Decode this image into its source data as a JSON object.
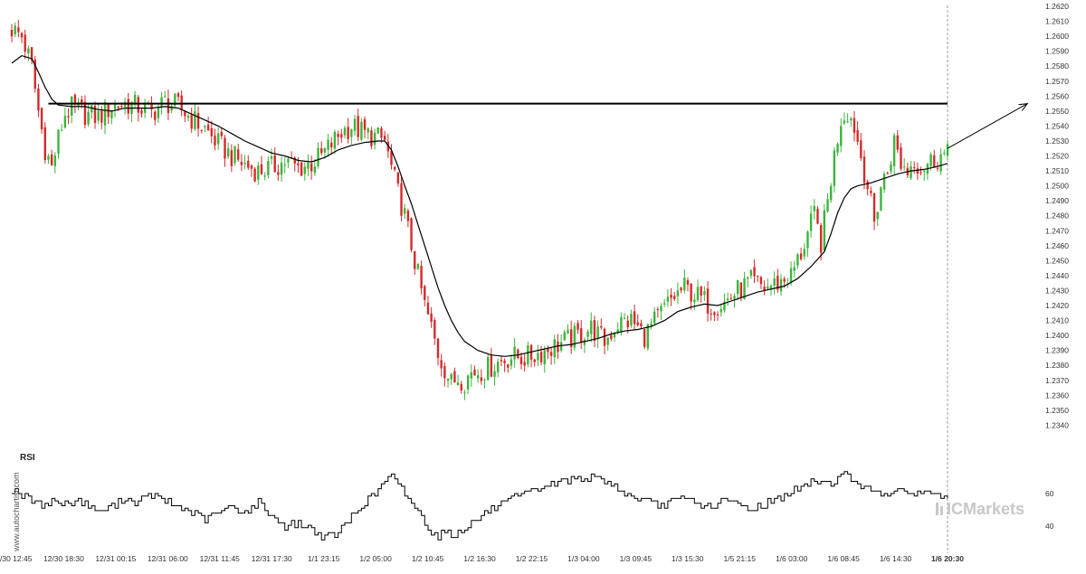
{
  "chart_data": [
    {
      "type": "candlestick",
      "title": "",
      "xlabel": "",
      "ylabel": "",
      "ylim": [
        1.233,
        1.262
      ],
      "y_ticks": [
        "1.2340",
        "1.2350",
        "1.2360",
        "1.2370",
        "1.2380",
        "1.2390",
        "1.2400",
        "1.2410",
        "1.2420",
        "1.2430",
        "1.2440",
        "1.2450",
        "1.2460",
        "1.2470",
        "1.2480",
        "1.2490",
        "1.2500",
        "1.2510",
        "1.2520",
        "1.2530",
        "1.2540",
        "1.2550",
        "1.2560",
        "1.2570",
        "1.2580",
        "1.2590",
        "1.2600",
        "1.2610",
        "1.2620"
      ],
      "x_ticks": [
        "12/30 12:45",
        "12/30 18:30",
        "12/31 00:15",
        "12/31 06:00",
        "12/31 11:45",
        "12/31 17:30",
        "1/1 23:15",
        "1/2 05:00",
        "1/2 10:45",
        "1/2 16:30",
        "1/2 22:15",
        "1/3 04:00",
        "1/3 09:45",
        "1/3 15:30",
        "1/5 21:15",
        "1/6 03:00",
        "1/6 08:45",
        "1/6 14:30",
        "1/6 20:30"
      ],
      "current_time_label": "1/6 20:30",
      "bullish_color": "#3cb43c",
      "bearish_color": "#d42a2a",
      "close_path": [
        [
          0,
          1.2605
        ],
        [
          3,
          1.26
        ],
        [
          6,
          1.258
        ],
        [
          8,
          1.255
        ],
        [
          10,
          1.2525
        ],
        [
          12,
          1.2512
        ],
        [
          14,
          1.2532
        ],
        [
          16,
          1.2548
        ],
        [
          18,
          1.2552
        ],
        [
          22,
          1.2548
        ],
        [
          26,
          1.2546
        ],
        [
          30,
          1.2553
        ],
        [
          34,
          1.2555
        ],
        [
          38,
          1.2553
        ],
        [
          42,
          1.2549
        ],
        [
          46,
          1.2556
        ],
        [
          50,
          1.2553
        ],
        [
          54,
          1.2545
        ],
        [
          58,
          1.2538
        ],
        [
          62,
          1.2528
        ],
        [
          66,
          1.252
        ],
        [
          70,
          1.2514
        ],
        [
          74,
          1.251
        ],
        [
          78,
          1.2512
        ],
        [
          82,
          1.2516
        ],
        [
          86,
          1.2512
        ],
        [
          90,
          1.2515
        ],
        [
          93,
          1.252
        ],
        [
          96,
          1.2528
        ],
        [
          99,
          1.2536
        ],
        [
          102,
          1.254
        ],
        [
          106,
          1.2535
        ],
        [
          110,
          1.2532
        ],
        [
          112,
          1.253
        ],
        [
          114,
          1.2512
        ],
        [
          116,
          1.2495
        ],
        [
          118,
          1.248
        ],
        [
          120,
          1.246
        ],
        [
          122,
          1.244
        ],
        [
          124,
          1.242
        ],
        [
          126,
          1.2405
        ],
        [
          128,
          1.2388
        ],
        [
          130,
          1.2378
        ],
        [
          132,
          1.2368
        ],
        [
          134,
          1.2372
        ],
        [
          136,
          1.237
        ],
        [
          138,
          1.2375
        ],
        [
          142,
          1.2377
        ],
        [
          146,
          1.2382
        ],
        [
          150,
          1.2386
        ],
        [
          154,
          1.2385
        ],
        [
          158,
          1.2388
        ],
        [
          162,
          1.2392
        ],
        [
          166,
          1.2396
        ],
        [
          170,
          1.24
        ],
        [
          174,
          1.2405
        ],
        [
          178,
          1.2396
        ],
        [
          182,
          1.2408
        ],
        [
          186,
          1.241
        ],
        [
          190,
          1.24
        ],
        [
          194,
          1.2412
        ],
        [
          198,
          1.2424
        ],
        [
          202,
          1.2432
        ],
        [
          206,
          1.2426
        ],
        [
          210,
          1.242
        ],
        [
          214,
          1.2422
        ],
        [
          218,
          1.243
        ],
        [
          222,
          1.2436
        ],
        [
          226,
          1.2432
        ],
        [
          230,
          1.2435
        ],
        [
          234,
          1.244
        ],
        [
          237,
          1.2455
        ],
        [
          239,
          1.2468
        ],
        [
          241,
          1.248
        ],
        [
          243,
          1.2462
        ],
        [
          245,
          1.249
        ],
        [
          247,
          1.252
        ],
        [
          249,
          1.2545
        ],
        [
          251,
          1.255
        ],
        [
          253,
          1.254
        ],
        [
          255,
          1.252
        ],
        [
          257,
          1.25
        ],
        [
          259,
          1.2475
        ],
        [
          261,
          1.25
        ],
        [
          263,
          1.251
        ],
        [
          265,
          1.253
        ],
        [
          267,
          1.2515
        ],
        [
          269,
          1.251
        ],
        [
          271,
          1.2518
        ],
        [
          273,
          1.2512
        ],
        [
          275,
          1.2515
        ],
        [
          277,
          1.2518
        ],
        [
          279,
          1.252
        ],
        [
          281,
          1.252
        ]
      ],
      "moving_average": [
        [
          0,
          1.2582
        ],
        [
          3,
          1.2587
        ],
        [
          6,
          1.2585
        ],
        [
          8,
          1.2576
        ],
        [
          10,
          1.2566
        ],
        [
          12,
          1.2558
        ],
        [
          14,
          1.2554
        ],
        [
          18,
          1.2553
        ],
        [
          22,
          1.2553
        ],
        [
          26,
          1.2551
        ],
        [
          30,
          1.255
        ],
        [
          34,
          1.2552
        ],
        [
          38,
          1.2552
        ],
        [
          42,
          1.2552
        ],
        [
          46,
          1.2553
        ],
        [
          50,
          1.2552
        ],
        [
          54,
          1.2548
        ],
        [
          58,
          1.2544
        ],
        [
          62,
          1.254
        ],
        [
          66,
          1.2535
        ],
        [
          70,
          1.253
        ],
        [
          74,
          1.2526
        ],
        [
          78,
          1.2522
        ],
        [
          82,
          1.252
        ],
        [
          86,
          1.2517
        ],
        [
          90,
          1.2516
        ],
        [
          94,
          1.2519
        ],
        [
          98,
          1.2524
        ],
        [
          102,
          1.2527
        ],
        [
          106,
          1.2529
        ],
        [
          110,
          1.253
        ],
        [
          112,
          1.253
        ],
        [
          114,
          1.2524
        ],
        [
          116,
          1.2513
        ],
        [
          118,
          1.25
        ],
        [
          120,
          1.2488
        ],
        [
          122,
          1.2474
        ],
        [
          124,
          1.246
        ],
        [
          126,
          1.2446
        ],
        [
          128,
          1.2432
        ],
        [
          130,
          1.242
        ],
        [
          132,
          1.241
        ],
        [
          134,
          1.2402
        ],
        [
          136,
          1.2396
        ],
        [
          140,
          1.239
        ],
        [
          144,
          1.2387
        ],
        [
          148,
          1.2386
        ],
        [
          152,
          1.2387
        ],
        [
          156,
          1.2389
        ],
        [
          160,
          1.2391
        ],
        [
          164,
          1.2393
        ],
        [
          168,
          1.2394
        ],
        [
          172,
          1.2396
        ],
        [
          176,
          1.2398
        ],
        [
          180,
          1.2401
        ],
        [
          184,
          1.2403
        ],
        [
          188,
          1.2404
        ],
        [
          192,
          1.2406
        ],
        [
          196,
          1.241
        ],
        [
          200,
          1.2416
        ],
        [
          204,
          1.2419
        ],
        [
          208,
          1.2421
        ],
        [
          212,
          1.242
        ],
        [
          216,
          1.2423
        ],
        [
          220,
          1.2426
        ],
        [
          224,
          1.2429
        ],
        [
          228,
          1.2431
        ],
        [
          232,
          1.2433
        ],
        [
          236,
          1.2438
        ],
        [
          240,
          1.2446
        ],
        [
          244,
          1.2456
        ],
        [
          246,
          1.2468
        ],
        [
          248,
          1.2482
        ],
        [
          250,
          1.2492
        ],
        [
          252,
          1.2498
        ],
        [
          254,
          1.25
        ],
        [
          258,
          1.2502
        ],
        [
          262,
          1.2505
        ],
        [
          266,
          1.2508
        ],
        [
          270,
          1.251
        ],
        [
          274,
          1.2511
        ],
        [
          278,
          1.2513
        ],
        [
          281,
          1.2515
        ]
      ],
      "resistance_level": 1.2555,
      "resistance_span": [
        11,
        281
      ],
      "projection_arrow": {
        "from": [
          281,
          1.2525
        ],
        "to": [
          305,
          1.2555
        ]
      },
      "candle_count": 282
    },
    {
      "type": "line",
      "title": "RSI",
      "ylim": [
        30,
        80
      ],
      "y_ticks": [
        "40",
        "60"
      ],
      "values_path": [
        [
          0,
          63
        ],
        [
          4,
          58
        ],
        [
          8,
          53
        ],
        [
          12,
          56
        ],
        [
          16,
          53
        ],
        [
          20,
          56
        ],
        [
          24,
          52
        ],
        [
          26,
          48
        ],
        [
          30,
          52
        ],
        [
          34,
          57
        ],
        [
          38,
          55
        ],
        [
          42,
          59
        ],
        [
          46,
          55
        ],
        [
          50,
          52
        ],
        [
          54,
          48
        ],
        [
          58,
          44
        ],
        [
          62,
          48
        ],
        [
          66,
          52
        ],
        [
          70,
          48
        ],
        [
          74,
          55
        ],
        [
          78,
          46
        ],
        [
          82,
          40
        ],
        [
          86,
          42
        ],
        [
          90,
          38
        ],
        [
          94,
          33
        ],
        [
          98,
          36
        ],
        [
          102,
          46
        ],
        [
          106,
          55
        ],
        [
          110,
          62
        ],
        [
          112,
          68
        ],
        [
          114,
          70
        ],
        [
          116,
          65
        ],
        [
          118,
          60
        ],
        [
          120,
          55
        ],
        [
          122,
          48
        ],
        [
          124,
          42
        ],
        [
          126,
          37
        ],
        [
          128,
          34
        ],
        [
          130,
          38
        ],
        [
          132,
          33
        ],
        [
          134,
          36
        ],
        [
          138,
          42
        ],
        [
          142,
          48
        ],
        [
          146,
          52
        ],
        [
          150,
          56
        ],
        [
          154,
          60
        ],
        [
          158,
          63
        ],
        [
          162,
          66
        ],
        [
          166,
          68
        ],
        [
          170,
          70
        ],
        [
          174,
          69
        ],
        [
          178,
          68
        ],
        [
          182,
          63
        ],
        [
          186,
          58
        ],
        [
          190,
          55
        ],
        [
          194,
          52
        ],
        [
          198,
          55
        ],
        [
          202,
          57
        ],
        [
          206,
          54
        ],
        [
          210,
          52
        ],
        [
          214,
          56
        ],
        [
          218,
          53
        ],
        [
          222,
          50
        ],
        [
          226,
          54
        ],
        [
          230,
          57
        ],
        [
          234,
          61
        ],
        [
          238,
          65
        ],
        [
          242,
          68
        ],
        [
          246,
          66
        ],
        [
          248,
          70
        ],
        [
          250,
          72
        ],
        [
          252,
          68
        ],
        [
          254,
          68
        ],
        [
          256,
          63
        ],
        [
          258,
          62
        ],
        [
          262,
          61
        ],
        [
          266,
          60
        ],
        [
          270,
          61
        ],
        [
          274,
          60
        ],
        [
          278,
          61
        ],
        [
          281,
          55
        ]
      ]
    }
  ],
  "colors": {
    "text": "#333333",
    "line": "#000000",
    "grid_dash": "#888888",
    "watermark": "#c8c8c8"
  },
  "branding": {
    "side_watermark": "www.autochartist.com",
    "logo_text": "ICMarkets"
  }
}
